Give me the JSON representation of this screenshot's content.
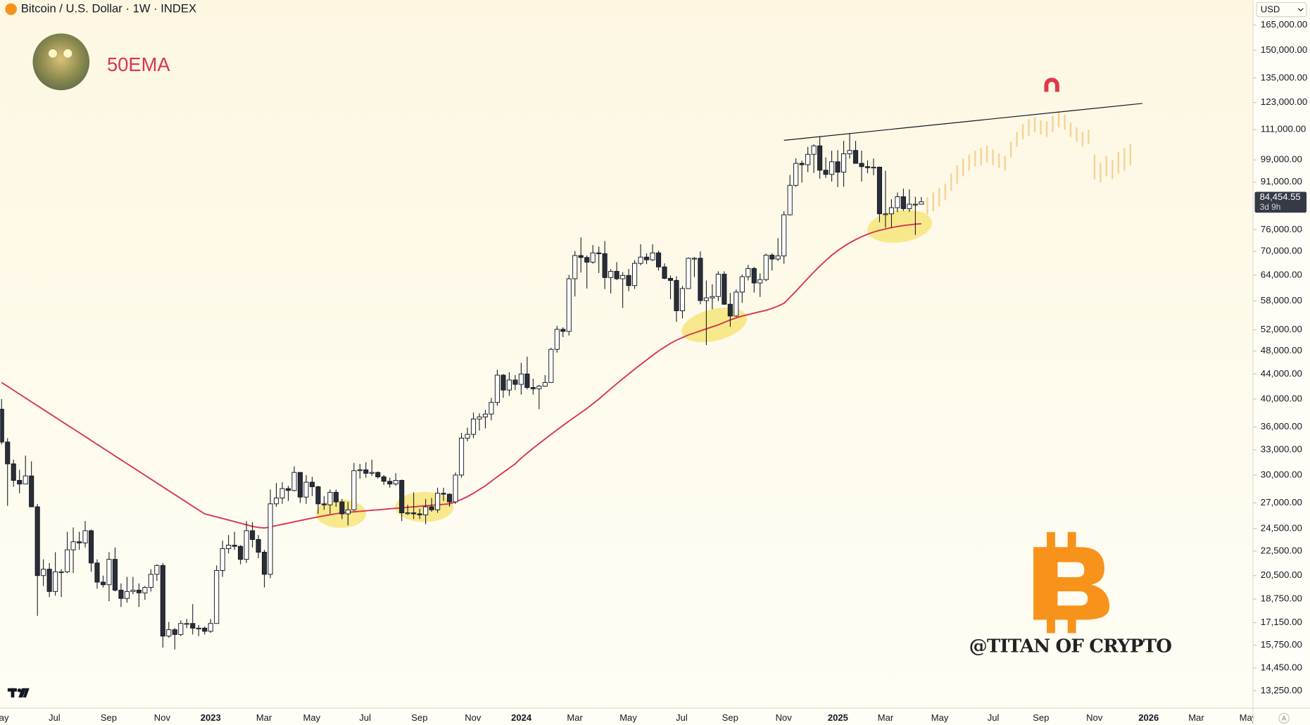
{
  "chart_data": {
    "type": "candlestick",
    "title": "Bitcoin / U.S. Dollar · 1W · INDEX",
    "currency": "USD",
    "auto_label": "A",
    "watermark": "@TITAN OF CRYPTO",
    "ylim": [
      12400,
      181400
    ],
    "log_scale": true,
    "grid": false,
    "up_color": "#ffffff",
    "down_color": "#2a2e39",
    "yticks": [
      {
        "value": 165000,
        "label": "165,000.00"
      },
      {
        "value": 150000,
        "label": "150,000.00"
      },
      {
        "value": 135000,
        "label": "135,000.00"
      },
      {
        "value": 123000,
        "label": "123,000.00"
      },
      {
        "value": 111000,
        "label": "111,000.00"
      },
      {
        "value": 99000,
        "label": "99,000.00"
      },
      {
        "value": 91000,
        "label": "91,000.00"
      },
      {
        "value": 76000,
        "label": "76,000.00"
      },
      {
        "value": 70000,
        "label": "70,000.00"
      },
      {
        "value": 64000,
        "label": "64,000.00"
      },
      {
        "value": 58000,
        "label": "58,000.00"
      },
      {
        "value": 52000,
        "label": "52,000.00"
      },
      {
        "value": 48000,
        "label": "48,000.00"
      },
      {
        "value": 44000,
        "label": "44,000.00"
      },
      {
        "value": 40000,
        "label": "40,000.00"
      },
      {
        "value": 36000,
        "label": "36,000.00"
      },
      {
        "value": 33000,
        "label": "33,000.00"
      },
      {
        "value": 30000,
        "label": "30,000.00"
      },
      {
        "value": 27000,
        "label": "27,000.00"
      },
      {
        "value": 24500,
        "label": "24,500.00"
      },
      {
        "value": 22500,
        "label": "22,500.00"
      },
      {
        "value": 20500,
        "label": "20,500.00"
      },
      {
        "value": 18750,
        "label": "18,750.00"
      },
      {
        "value": 17150,
        "label": "17,150.00"
      },
      {
        "value": 15750,
        "label": "15,750.00"
      },
      {
        "value": 14450,
        "label": "14,450.00"
      },
      {
        "value": 13250,
        "label": "13,250.00"
      }
    ],
    "xticks": [
      "May",
      "Jul",
      "Sep",
      "Nov",
      "2023",
      "Mar",
      "May",
      "Jul",
      "Sep",
      "Nov",
      "2024",
      "Mar",
      "May",
      "Jul",
      "Sep",
      "Nov",
      "2025",
      "Mar",
      "May",
      "Jul",
      "Sep",
      "Nov",
      "2026",
      "Mar",
      "May"
    ],
    "last_price": {
      "value": 84454.55,
      "label": "84,454.55"
    },
    "countdown": "3d 9h",
    "candles": [
      [
        38500,
        40000,
        33700,
        34000
      ],
      [
        34000,
        34500,
        26700,
        31300
      ],
      [
        31300,
        31800,
        28700,
        29400
      ],
      [
        29400,
        30600,
        28000,
        29000
      ],
      [
        29000,
        32300,
        29000,
        29900
      ],
      [
        29900,
        31600,
        26600,
        26600
      ],
      [
        26600,
        26900,
        17600,
        20500
      ],
      [
        20500,
        21800,
        19700,
        21000
      ],
      [
        21000,
        21500,
        18900,
        19300
      ],
      [
        19300,
        22400,
        19000,
        20800
      ],
      [
        20800,
        21000,
        18900,
        20800
      ],
      [
        20800,
        24200,
        20700,
        22600
      ],
      [
        22600,
        24600,
        20700,
        23300
      ],
      [
        23300,
        24200,
        22600,
        23200
      ],
      [
        23200,
        25200,
        22800,
        24300
      ],
      [
        24300,
        24400,
        20800,
        21500
      ],
      [
        21500,
        21800,
        19500,
        20000
      ],
      [
        20000,
        20500,
        19600,
        19800
      ],
      [
        19800,
        22400,
        18600,
        21800
      ],
      [
        21800,
        22800,
        19300,
        19400
      ],
      [
        19400,
        19900,
        18200,
        18800
      ],
      [
        18800,
        20400,
        18500,
        19300
      ],
      [
        19300,
        20400,
        19100,
        19400
      ],
      [
        19400,
        19900,
        18200,
        19200
      ],
      [
        19200,
        19700,
        18700,
        19600
      ],
      [
        19600,
        21000,
        19300,
        20600
      ],
      [
        20600,
        21400,
        20100,
        21300
      ],
      [
        21300,
        21500,
        15600,
        16300
      ],
      [
        16300,
        17200,
        16200,
        16700
      ],
      [
        16700,
        16800,
        15500,
        16400
      ],
      [
        16400,
        17300,
        16300,
        17100
      ],
      [
        17100,
        17400,
        16800,
        17100
      ],
      [
        17100,
        18400,
        16400,
        16800
      ],
      [
        16800,
        17000,
        16300,
        16800
      ],
      [
        16800,
        16900,
        16400,
        16600
      ],
      [
        16600,
        17400,
        16500,
        17100
      ],
      [
        17100,
        21300,
        17100,
        20900
      ],
      [
        20900,
        23400,
        20400,
        22700
      ],
      [
        22700,
        23900,
        22300,
        23000
      ],
      [
        23000,
        24200,
        22600,
        22900
      ],
      [
        22900,
        23000,
        21400,
        21800
      ],
      [
        21800,
        25200,
        21500,
        24300
      ],
      [
        24300,
        25100,
        22800,
        23500
      ],
      [
        23500,
        23900,
        21900,
        22400
      ],
      [
        22400,
        22600,
        19600,
        20600
      ],
      [
        20600,
        28400,
        20300,
        26900
      ],
      [
        26900,
        29100,
        26600,
        27500
      ],
      [
        27500,
        29200,
        26900,
        28500
      ],
      [
        28500,
        28800,
        27200,
        28300
      ],
      [
        28300,
        31000,
        28200,
        30300
      ],
      [
        30300,
        30300,
        27000,
        27600
      ],
      [
        27600,
        30000,
        26900,
        29200
      ],
      [
        29200,
        29800,
        27700,
        28700
      ],
      [
        28700,
        28800,
        25900,
        26900
      ],
      [
        26900,
        27700,
        26300,
        26800
      ],
      [
        26800,
        28400,
        25900,
        28100
      ],
      [
        28100,
        28400,
        26600,
        27100
      ],
      [
        27100,
        27400,
        25400,
        25900
      ],
      [
        25900,
        27100,
        24800,
        26300
      ],
      [
        26300,
        31400,
        26200,
        30500
      ],
      [
        30500,
        31300,
        29600,
        30600
      ],
      [
        30600,
        31500,
        29700,
        30200
      ],
      [
        30200,
        31800,
        29900,
        30300
      ],
      [
        30300,
        30400,
        29600,
        29800
      ],
      [
        29800,
        30000,
        28900,
        29300
      ],
      [
        29300,
        29700,
        28600,
        29000
      ],
      [
        29000,
        30200,
        28800,
        29400
      ],
      [
        29400,
        29500,
        25200,
        26000
      ],
      [
        26000,
        26800,
        25800,
        26000
      ],
      [
        26000,
        28100,
        25400,
        25900
      ],
      [
        25900,
        26400,
        25400,
        25800
      ],
      [
        25800,
        27400,
        24900,
        26600
      ],
      [
        26600,
        27500,
        26100,
        26300
      ],
      [
        26300,
        28600,
        26000,
        28000
      ],
      [
        28000,
        28600,
        27200,
        27900
      ],
      [
        27900,
        28000,
        26600,
        27100
      ],
      [
        27100,
        30300,
        26900,
        30000
      ],
      [
        30000,
        35200,
        29700,
        34500
      ],
      [
        34500,
        35900,
        34100,
        35000
      ],
      [
        35000,
        38000,
        34500,
        37100
      ],
      [
        37100,
        37900,
        35500,
        37400
      ],
      [
        37400,
        38400,
        35800,
        37800
      ],
      [
        37800,
        40200,
        36900,
        39500
      ],
      [
        39500,
        44700,
        39000,
        43800
      ],
      [
        43800,
        44000,
        40200,
        41400
      ],
      [
        41400,
        44300,
        40500,
        43000
      ],
      [
        43000,
        43800,
        41400,
        42300
      ],
      [
        42300,
        45900,
        40700,
        44000
      ],
      [
        44000,
        47000,
        41500,
        41800
      ],
      [
        41800,
        43200,
        40700,
        41600
      ],
      [
        41600,
        42200,
        38500,
        42000
      ],
      [
        42000,
        43800,
        41900,
        42600
      ],
      [
        42600,
        48600,
        42600,
        48300
      ],
      [
        48300,
        52800,
        47700,
        52100
      ],
      [
        52100,
        52500,
        50600,
        51700
      ],
      [
        51700,
        64000,
        50900,
        63100
      ],
      [
        63100,
        70100,
        59000,
        68900
      ],
      [
        68900,
        73800,
        64600,
        68400
      ],
      [
        68400,
        68900,
        60800,
        67200
      ],
      [
        67200,
        71700,
        66800,
        69600
      ],
      [
        69600,
        71300,
        64500,
        69400
      ],
      [
        69400,
        72800,
        60700,
        63400
      ],
      [
        63400,
        65500,
        59700,
        64900
      ],
      [
        64900,
        67200,
        62800,
        63100
      ],
      [
        63100,
        64700,
        56500,
        63900
      ],
      [
        63900,
        65500,
        60200,
        61500
      ],
      [
        61500,
        67700,
        60700,
        66900
      ],
      [
        66900,
        71900,
        66400,
        68500
      ],
      [
        68500,
        69500,
        66700,
        67800
      ],
      [
        67800,
        71900,
        67500,
        69600
      ],
      [
        69600,
        70200,
        65100,
        66000
      ],
      [
        66000,
        66900,
        63000,
        63200
      ],
      [
        63200,
        63900,
        58400,
        62700
      ],
      [
        62700,
        63700,
        53600,
        55900
      ],
      [
        55900,
        61400,
        54300,
        60800
      ],
      [
        60800,
        68400,
        60700,
        68200
      ],
      [
        68200,
        68500,
        63500,
        68200
      ],
      [
        68200,
        70000,
        57300,
        58100
      ],
      [
        58100,
        62700,
        49100,
        58700
      ],
      [
        58700,
        61800,
        56200,
        59000
      ],
      [
        59000,
        64900,
        58000,
        64200
      ],
      [
        64200,
        64900,
        57200,
        57300
      ],
      [
        57300,
        59800,
        52600,
        54800
      ],
      [
        54800,
        60600,
        54600,
        60000
      ],
      [
        60000,
        64100,
        57600,
        63600
      ],
      [
        63600,
        66500,
        62700,
        65600
      ],
      [
        65600,
        66000,
        59900,
        62100
      ],
      [
        62100,
        64400,
        58900,
        62900
      ],
      [
        62900,
        69400,
        62500,
        69000
      ],
      [
        69000,
        69500,
        65100,
        68000
      ],
      [
        68000,
        73600,
        67500,
        68800
      ],
      [
        68800,
        81500,
        66800,
        80400
      ],
      [
        80400,
        93500,
        80200,
        89900
      ],
      [
        89900,
        99600,
        89400,
        97700
      ],
      [
        97700,
        98700,
        90800,
        97200
      ],
      [
        97200,
        104000,
        94500,
        101100
      ],
      [
        101100,
        105000,
        94200,
        104400
      ],
      [
        104400,
        108300,
        92200,
        95200
      ],
      [
        95200,
        99900,
        92500,
        93700
      ],
      [
        93700,
        102500,
        91200,
        98300
      ],
      [
        98300,
        102700,
        89300,
        94500
      ],
      [
        94500,
        106400,
        89400,
        101300
      ],
      [
        101300,
        109600,
        99500,
        102600
      ],
      [
        102600,
        106400,
        97600,
        97700
      ],
      [
        97700,
        102500,
        91200,
        96500
      ],
      [
        96500,
        98800,
        94100,
        96100
      ],
      [
        96100,
        99500,
        93400,
        96300
      ],
      [
        96300,
        96500,
        78200,
        80700
      ],
      [
        80700,
        95000,
        76600,
        80700
      ],
      [
        80700,
        85300,
        76600,
        82600
      ],
      [
        82600,
        87500,
        81200,
        86100
      ],
      [
        86100,
        88800,
        81600,
        82300
      ],
      [
        82300,
        88500,
        81300,
        83700
      ],
      [
        83700,
        86100,
        74500,
        83700
      ],
      [
        83700,
        86000,
        83600,
        84454.55
      ]
    ],
    "ema": {
      "name": "50EMA",
      "color": "#d6364f",
      "values": [
        42600,
        41980,
        41370,
        40770,
        40180,
        39590,
        39020,
        38450,
        37890,
        37340,
        36800,
        36260,
        35740,
        35220,
        34710,
        34200,
        33700,
        33210,
        32730,
        32250,
        31780,
        31320,
        30870,
        30420,
        29980,
        29540,
        29110,
        28690,
        28270,
        27860,
        27460,
        27060,
        26660,
        26280,
        25900,
        25750,
        25600,
        25450,
        25300,
        25150,
        25000,
        24850,
        24700,
        24600,
        24550,
        24650,
        24770,
        24890,
        25010,
        25130,
        25250,
        25370,
        25490,
        25600,
        25710,
        25810,
        25910,
        26000,
        26050,
        26100,
        26150,
        26200,
        26250,
        26300,
        26350,
        26400,
        26450,
        26500,
        26550,
        26600,
        26650,
        26700,
        26750,
        26800,
        26850,
        26900,
        27100,
        27350,
        27650,
        28000,
        28400,
        28800,
        29300,
        29800,
        30300,
        30800,
        31300,
        32000,
        32600,
        33200,
        33800,
        34400,
        35000,
        35600,
        36200,
        36800,
        37400,
        38000,
        38600,
        39300,
        40000,
        40800,
        41600,
        42400,
        43200,
        44000,
        44800,
        45600,
        46400,
        47200,
        48000,
        48700,
        49400,
        50000,
        50500,
        51000,
        51400,
        51800,
        52200,
        52600,
        53000,
        53500,
        54000,
        54400,
        54800,
        55100,
        55400,
        55700,
        56000,
        56400,
        56900,
        57500,
        58800,
        60200,
        61700,
        63200,
        64700,
        66200,
        67600,
        69000,
        70200,
        71300,
        72300,
        73200,
        74000,
        74700,
        75300,
        75800,
        76200,
        76600,
        76900,
        77200,
        77400,
        77600,
        77700
      ]
    },
    "projection": [
      [
        80500,
        86000
      ],
      [
        81500,
        87500
      ],
      [
        83000,
        89000
      ],
      [
        85000,
        90500
      ],
      [
        88000,
        94000
      ],
      [
        90500,
        97000
      ],
      [
        93000,
        99500
      ],
      [
        95000,
        101000
      ],
      [
        96500,
        102500
      ],
      [
        97000,
        103500
      ],
      [
        98000,
        104500
      ],
      [
        97000,
        103000
      ],
      [
        96000,
        101500
      ],
      [
        95000,
        100500
      ],
      [
        100000,
        106000
      ],
      [
        104000,
        110000
      ],
      [
        107000,
        113500
      ],
      [
        108500,
        115500
      ],
      [
        110000,
        116500
      ],
      [
        109000,
        115000
      ],
      [
        108000,
        114500
      ],
      [
        110000,
        117000
      ],
      [
        112000,
        119000
      ],
      [
        111000,
        117500
      ],
      [
        108000,
        114000
      ],
      [
        106000,
        112000
      ],
      [
        104000,
        110000
      ],
      [
        105000,
        111000
      ],
      [
        92000,
        101000
      ],
      [
        91000,
        98000
      ],
      [
        93000,
        100500
      ],
      [
        92000,
        99000
      ],
      [
        94000,
        102000
      ],
      [
        95000,
        103500
      ],
      [
        97000,
        105000
      ]
    ],
    "trendline": [
      106600,
      122600
    ]
  }
}
